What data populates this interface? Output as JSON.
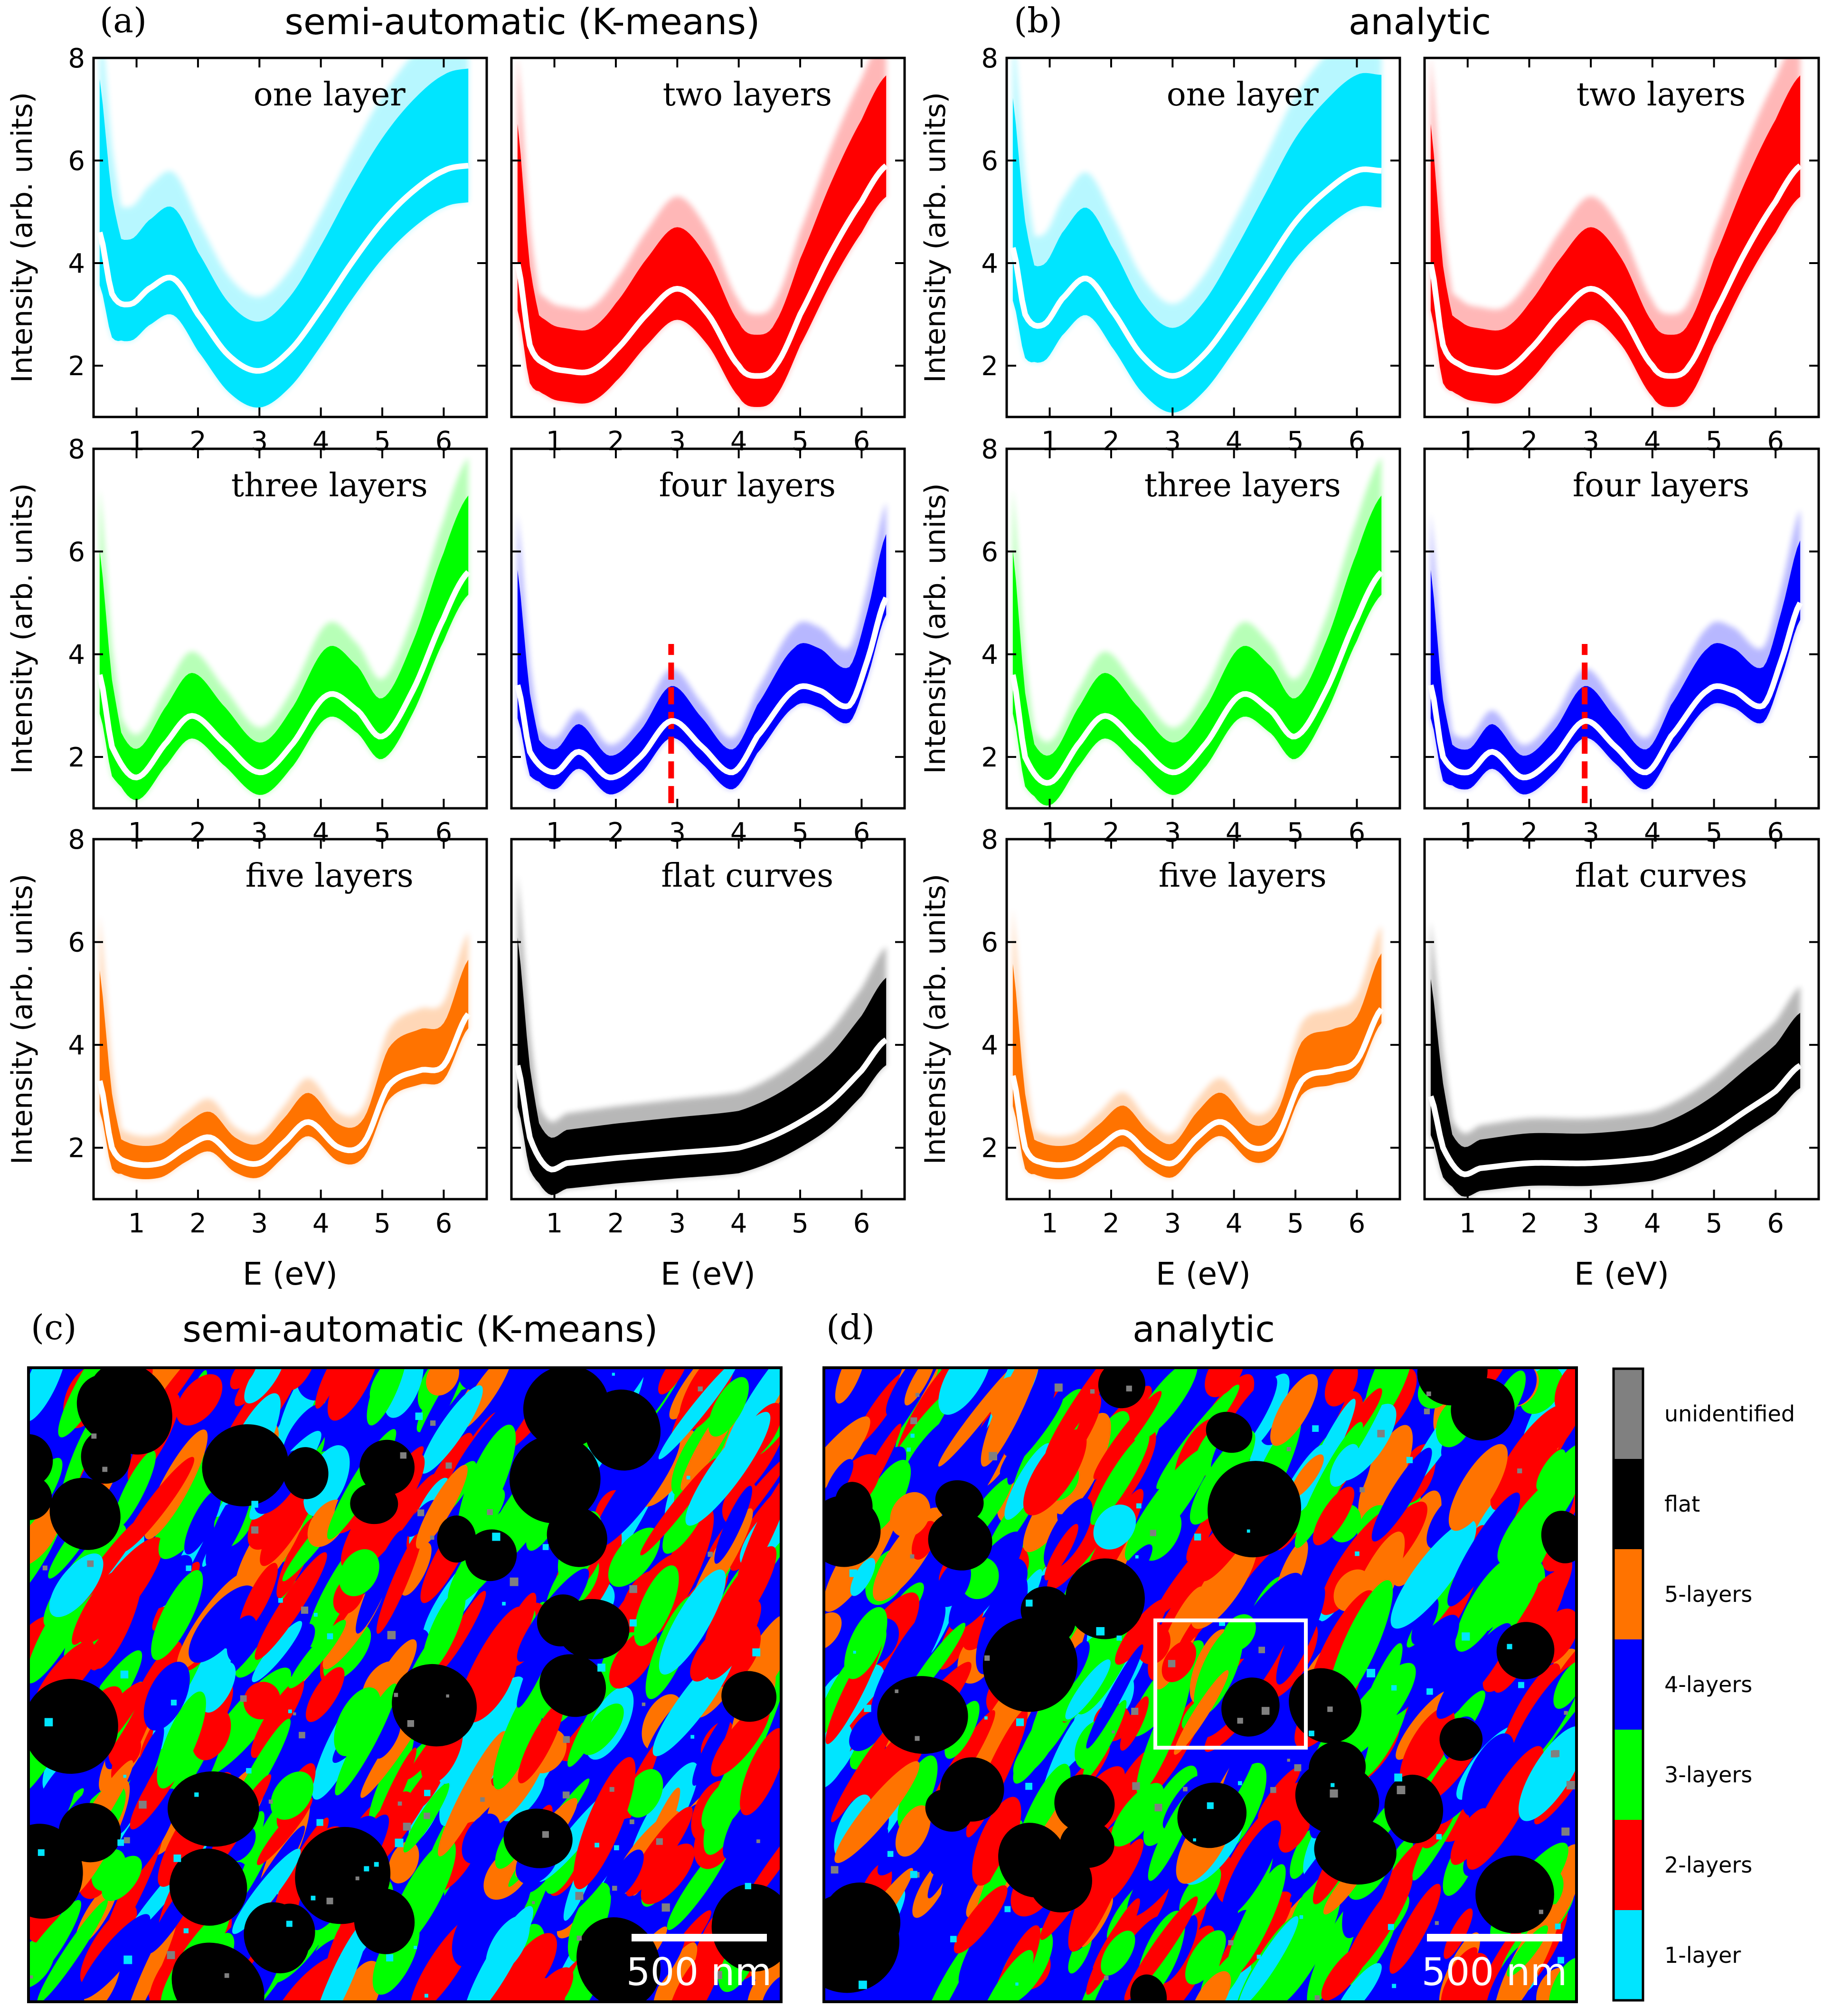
{
  "colors": {
    "one": "#00e5ff",
    "two": "#ff0000",
    "three": "#00ff00",
    "four": "#0000ff",
    "five": "#ff7300",
    "flat": "#000000",
    "unidentified": "#808080",
    "mean_curve": "#ffffff",
    "marker": "#ff0000"
  },
  "figure": {
    "panel_a": {
      "letter": "(a)",
      "title": "semi-automatic (K-means)"
    },
    "panel_b": {
      "letter": "(b)",
      "title": "analytic"
    },
    "panel_c": {
      "letter": "(c)",
      "title": "semi-automatic (K-means)",
      "scalebar": "500 nm"
    },
    "panel_d": {
      "letter": "(d)",
      "title": "analytic",
      "scalebar": "500 nm"
    }
  },
  "chart_data": [
    {
      "type": "line",
      "group": "a",
      "xlabel": "E (eV)",
      "ylabel": "Intensity (arb. units)",
      "xlim": [
        0.3,
        6.7
      ],
      "ylim": [
        1,
        8
      ],
      "xticks": [
        1,
        2,
        3,
        4,
        5,
        6
      ],
      "yticks": [
        2,
        4,
        6,
        8
      ],
      "panels": [
        {
          "label": "one layer",
          "color_key": "one",
          "mean_x": [
            0.4,
            0.6,
            0.9,
            1.2,
            1.6,
            2.0,
            2.5,
            3.0,
            3.5,
            4.0,
            4.5,
            5.0,
            5.5,
            6.0,
            6.4
          ],
          "mean_y": [
            4.6,
            3.4,
            3.2,
            3.5,
            3.7,
            3.0,
            2.2,
            1.9,
            2.3,
            3.1,
            4.0,
            4.8,
            5.4,
            5.8,
            5.9
          ],
          "band": [
            1.3,
            2.3
          ]
        },
        {
          "label": "two layers",
          "color_key": "two",
          "mean_x": [
            0.4,
            0.6,
            0.9,
            1.2,
            1.6,
            2.0,
            2.5,
            3.0,
            3.5,
            4.0,
            4.3,
            4.6,
            5.0,
            5.5,
            6.0,
            6.4
          ],
          "mean_y": [
            4.0,
            2.4,
            2.0,
            1.9,
            1.9,
            2.3,
            3.0,
            3.5,
            3.0,
            2.0,
            1.8,
            2.0,
            3.0,
            4.2,
            5.2,
            5.9
          ],
          "band": [
            1.1,
            2.6
          ]
        },
        {
          "label": "three layers",
          "color_key": "three",
          "mean_x": [
            0.4,
            0.6,
            1.0,
            1.5,
            1.9,
            2.4,
            3.0,
            3.5,
            4.1,
            4.6,
            5.0,
            5.5,
            6.0,
            6.4
          ],
          "mean_y": [
            3.6,
            2.2,
            1.6,
            2.3,
            2.8,
            2.3,
            1.7,
            2.2,
            3.2,
            2.9,
            2.4,
            3.3,
            4.7,
            5.6
          ],
          "band": [
            0.8,
            2.0
          ]
        },
        {
          "label": "four layers",
          "color_key": "four",
          "mean_x": [
            0.4,
            0.6,
            1.0,
            1.4,
            1.9,
            2.4,
            2.9,
            3.4,
            3.9,
            4.3,
            4.9,
            5.3,
            5.8,
            6.1,
            6.4
          ],
          "mean_y": [
            3.4,
            2.1,
            1.7,
            2.1,
            1.6,
            2.0,
            2.7,
            2.2,
            1.7,
            2.4,
            3.3,
            3.3,
            3.0,
            3.9,
            5.1
          ],
          "band": [
            0.6,
            1.8
          ],
          "marker_x": 2.9,
          "marker_y": [
            1.1,
            4.2
          ]
        },
        {
          "label": "five layers",
          "color_key": "five",
          "mean_x": [
            0.4,
            0.6,
            0.9,
            1.4,
            1.8,
            2.2,
            2.6,
            3.0,
            3.4,
            3.8,
            4.3,
            4.7,
            5.1,
            5.6,
            6.0,
            6.4
          ],
          "mean_y": [
            3.3,
            2.0,
            1.7,
            1.7,
            2.0,
            2.2,
            1.8,
            1.7,
            2.1,
            2.5,
            2.0,
            2.1,
            3.2,
            3.5,
            3.6,
            4.6
          ],
          "band": [
            0.5,
            1.4
          ]
        },
        {
          "label": "flat curves",
          "color_key": "flat",
          "mean_x": [
            0.4,
            0.6,
            0.9,
            1.2,
            2.0,
            3.0,
            4.0,
            4.5,
            5.0,
            5.5,
            6.0,
            6.4
          ],
          "mean_y": [
            3.6,
            2.2,
            1.6,
            1.7,
            1.8,
            1.9,
            2.0,
            2.2,
            2.5,
            2.9,
            3.5,
            4.1
          ],
          "band": [
            0.9,
            1.8
          ]
        }
      ]
    },
    {
      "type": "line",
      "group": "b",
      "xlabel": "E (eV)",
      "ylabel": "Intensity (arb. units)",
      "xlim": [
        0.3,
        6.7
      ],
      "ylim": [
        1,
        8
      ],
      "xticks": [
        1,
        2,
        3,
        4,
        5,
        6
      ],
      "yticks": [
        2,
        4,
        6,
        8
      ],
      "panels": [
        {
          "label": "one layer",
          "color_key": "one",
          "mean_x": [
            0.4,
            0.6,
            0.9,
            1.2,
            1.6,
            2.0,
            2.5,
            3.0,
            3.5,
            4.0,
            4.5,
            5.0,
            5.5,
            6.0,
            6.4
          ],
          "mean_y": [
            4.3,
            3.0,
            2.8,
            3.3,
            3.7,
            3.1,
            2.2,
            1.8,
            2.2,
            3.0,
            3.9,
            4.8,
            5.4,
            5.8,
            5.8
          ],
          "band": [
            1.3,
            2.3
          ]
        },
        {
          "label": "two layers",
          "color_key": "two",
          "mean_x": [
            0.4,
            0.6,
            0.9,
            1.2,
            1.6,
            2.0,
            2.5,
            3.0,
            3.5,
            4.0,
            4.3,
            4.6,
            5.0,
            5.5,
            6.0,
            6.4
          ],
          "mean_y": [
            4.0,
            2.4,
            2.0,
            1.9,
            1.9,
            2.3,
            3.0,
            3.5,
            3.0,
            2.0,
            1.8,
            2.0,
            3.0,
            4.2,
            5.2,
            5.9
          ],
          "band": [
            1.1,
            2.6
          ]
        },
        {
          "label": "three layers",
          "color_key": "three",
          "mean_x": [
            0.4,
            0.6,
            1.0,
            1.5,
            1.9,
            2.4,
            3.0,
            3.5,
            4.1,
            4.6,
            5.0,
            5.5,
            6.0,
            6.4
          ],
          "mean_y": [
            3.6,
            2.0,
            1.5,
            2.3,
            2.8,
            2.3,
            1.7,
            2.2,
            3.2,
            2.9,
            2.4,
            3.3,
            4.7,
            5.6
          ],
          "band": [
            0.8,
            2.0
          ]
        },
        {
          "label": "four layers",
          "color_key": "four",
          "mean_x": [
            0.4,
            0.6,
            1.0,
            1.4,
            1.9,
            2.4,
            2.9,
            3.4,
            3.9,
            4.3,
            4.9,
            5.3,
            5.8,
            6.1,
            6.4
          ],
          "mean_y": [
            3.4,
            2.0,
            1.7,
            2.1,
            1.6,
            2.0,
            2.7,
            2.2,
            1.7,
            2.4,
            3.3,
            3.3,
            3.0,
            3.9,
            5.0
          ],
          "band": [
            0.6,
            1.8
          ],
          "marker_x": 2.9,
          "marker_y": [
            1.1,
            4.2
          ]
        },
        {
          "label": "five layers",
          "color_key": "five",
          "mean_x": [
            0.4,
            0.6,
            0.9,
            1.4,
            1.8,
            2.2,
            2.6,
            3.0,
            3.4,
            3.8,
            4.3,
            4.7,
            5.1,
            5.6,
            6.0,
            6.4
          ],
          "mean_y": [
            3.4,
            2.0,
            1.7,
            1.7,
            2.0,
            2.3,
            1.9,
            1.7,
            2.2,
            2.5,
            2.0,
            2.2,
            3.3,
            3.5,
            3.7,
            4.7
          ],
          "band": [
            0.5,
            1.4
          ]
        },
        {
          "label": "flat curves",
          "color_key": "flat",
          "mean_x": [
            0.4,
            0.6,
            0.9,
            1.2,
            2.0,
            3.0,
            4.0,
            4.5,
            5.0,
            5.5,
            6.0,
            6.4
          ],
          "mean_y": [
            3.0,
            2.0,
            1.5,
            1.6,
            1.7,
            1.7,
            1.8,
            2.0,
            2.3,
            2.7,
            3.1,
            3.6
          ],
          "band": [
            0.8,
            1.6
          ]
        }
      ]
    },
    {
      "type": "heatmap",
      "group": "maps",
      "legend": [
        "unidentified",
        "flat",
        "5-layers",
        "4-layers",
        "3-layers",
        "2-layers",
        "1-layer"
      ],
      "legend_color_keys": [
        "unidentified",
        "flat",
        "five",
        "four",
        "three",
        "two",
        "one"
      ]
    }
  ]
}
